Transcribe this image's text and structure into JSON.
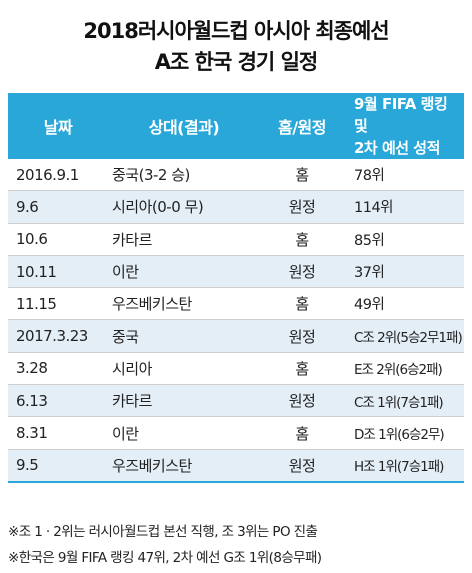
{
  "title": {
    "line1": "2018러시아월드컵 아시아 최종예선",
    "line2": "A조 한국 경기 일정"
  },
  "table": {
    "headers": [
      "날짜",
      "상대(결과)",
      "홈/원정",
      "9월 FIFA 랭킹 및\n2차 예선 성적"
    ],
    "header4_line1": "9월 FIFA 랭킹 및",
    "header4_line2": "2차 예선 성적",
    "rows": [
      [
        "2016.9.1",
        "중국(3-2 승)",
        "홈",
        "78위"
      ],
      [
        "9.6",
        "시리아(0-0 무)",
        "원정",
        "114위"
      ],
      [
        "10.6",
        "카타르",
        "홈",
        "85위"
      ],
      [
        "10.11",
        "이란",
        "원정",
        "37위"
      ],
      [
        "11.15",
        "우즈베키스탄",
        "홈",
        "49위"
      ],
      [
        "2017.3.23",
        "중국",
        "원정",
        "C조 2위(5승2무1패)"
      ],
      [
        "3.28",
        "시리아",
        "홈",
        "E조 2위(6승2패)"
      ],
      [
        "6.13",
        "카타르",
        "원정",
        "C조 1위(7승1패)"
      ],
      [
        "8.31",
        "이란",
        "홈",
        "D조 1위(6승2무)"
      ],
      [
        "9.5",
        "우즈베키스탄",
        "원정",
        "H조 1위(7승1패)"
      ]
    ]
  },
  "notes": [
    "※조 1 · 2위는 러시아월드컵 본선 직행, 조 3위는 PO 진출",
    "※한국은 9월 FIFA 랭킹 47위, 2차 예선 G조 1위(8승무패)"
  ],
  "colors": {
    "header_bg": "#2aa7d9",
    "stripe_bg": "#e4eef7"
  }
}
